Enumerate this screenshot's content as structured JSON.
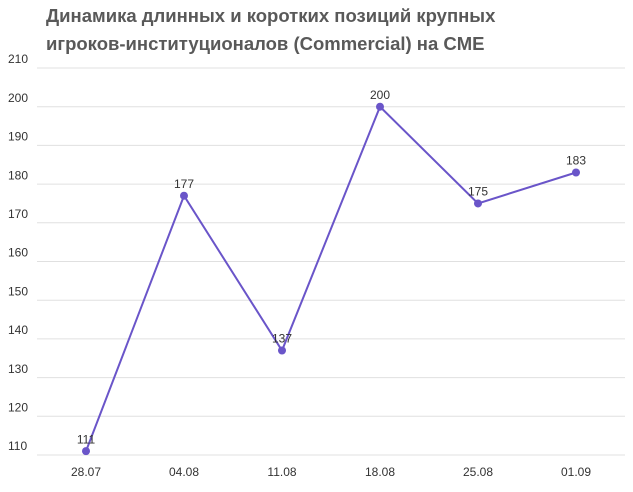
{
  "chart_data": {
    "type": "line",
    "title": "Динамика длинных и коротких позиций крупных игроков-институционалов (Commercial) на CME",
    "categories": [
      "28.07",
      "04.08",
      "11.08",
      "18.08",
      "25.08",
      "01.09"
    ],
    "values": [
      111,
      177,
      137,
      200,
      175,
      183
    ],
    "color": "#6a55c9",
    "ylim": [
      110,
      210
    ],
    "yticks": [
      110,
      120,
      130,
      140,
      150,
      160,
      170,
      180,
      190,
      200,
      210
    ],
    "grid": true
  }
}
